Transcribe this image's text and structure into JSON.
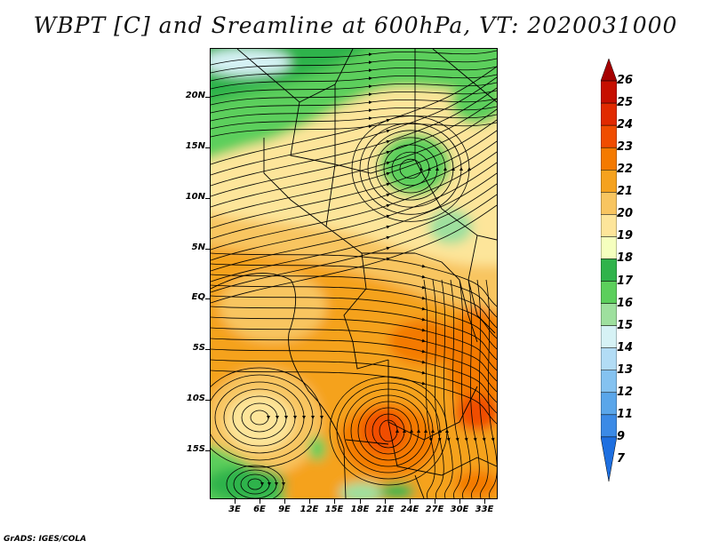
{
  "title": "WBPT [C] and Sreamline at 600hPa, VT: 2020031000",
  "credit": "GrADS: IGES/COLA",
  "lat_labels": [
    "20N",
    "15N",
    "10N",
    "5N",
    "EQ",
    "5S",
    "10S",
    "15S"
  ],
  "lon_labels": [
    "3E",
    "6E",
    "9E",
    "12E",
    "15E",
    "18E",
    "21E",
    "24E",
    "27E",
    "30E",
    "33E"
  ],
  "colorbar": {
    "levels": [
      "26",
      "25",
      "24",
      "23",
      "22",
      "21",
      "20",
      "19",
      "18",
      "17",
      "16",
      "15",
      "14",
      "13",
      "12",
      "11",
      "9",
      "7"
    ],
    "colors": [
      "#a50000",
      "#c60f00",
      "#e12a00",
      "#f04d00",
      "#f47a00",
      "#f5a21e",
      "#f8c560",
      "#fde59a",
      "#f5ffbe",
      "#2fb34b",
      "#5ccf5c",
      "#9ee09e",
      "#d6f2f5",
      "#b2dcf5",
      "#84c2f0",
      "#5aa6ea",
      "#3b8ae6",
      "#1e6fe0"
    ]
  },
  "field_colors": {
    "dark_green": "#2fb34b",
    "green": "#5ccf5c",
    "light_green": "#9ee09e",
    "pale_yellow": "#fde59a",
    "light_orange": "#f8c560",
    "orange": "#f5a21e",
    "dark_orange": "#f47a00",
    "red_orange": "#f04d00",
    "light_blue": "#d6f2f5",
    "boundary": "#000000",
    "streamline": "#000000"
  }
}
